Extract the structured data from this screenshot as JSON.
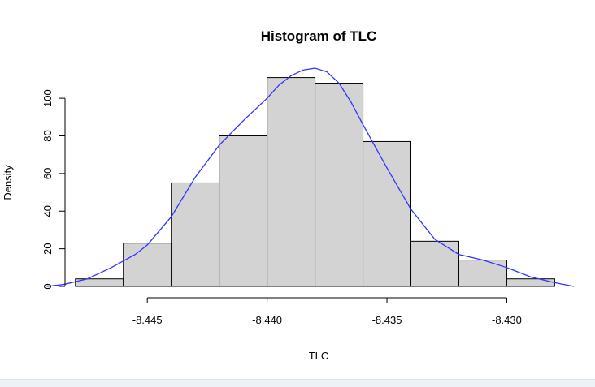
{
  "chart_data": {
    "type": "bar",
    "title": "Histogram of TLC",
    "xlabel": "TLC",
    "ylabel": "Density",
    "bin_edges": [
      -8.448,
      -8.446,
      -8.444,
      -8.442,
      -8.44,
      -8.438,
      -8.436,
      -8.434,
      -8.432,
      -8.43,
      -8.428
    ],
    "values": [
      4,
      23,
      55,
      80,
      111,
      108,
      77,
      24,
      14,
      4
    ],
    "x_ticks": [
      -8.445,
      -8.44,
      -8.435,
      -8.43
    ],
    "x_tick_labels": [
      "-8.445",
      "-8.440",
      "-8.435",
      "-8.430"
    ],
    "y_ticks": [
      0,
      20,
      40,
      60,
      80,
      100
    ],
    "y_tick_labels": [
      "0",
      "20",
      "40",
      "60",
      "80",
      "100"
    ],
    "xlim": [
      -8.4485,
      -8.4272
    ],
    "ylim": [
      0,
      116
    ],
    "grid": false,
    "density_curve": {
      "color": "#3333ff",
      "x": [
        -8.4492,
        -8.4485,
        -8.4475,
        -8.4465,
        -8.4455,
        -8.445,
        -8.444,
        -8.443,
        -8.442,
        -8.441,
        -8.44,
        -8.4395,
        -8.439,
        -8.4385,
        -8.438,
        -8.4375,
        -8.437,
        -8.4365,
        -8.436,
        -8.435,
        -8.434,
        -8.433,
        -8.432,
        -8.431,
        -8.43,
        -8.429,
        -8.428,
        -8.4272
      ],
      "y": [
        0,
        1,
        4,
        10,
        17,
        22,
        37,
        58,
        75,
        88,
        100,
        107,
        112,
        115,
        116,
        114,
        108,
        98,
        86,
        63,
        41,
        25,
        17,
        14,
        10,
        5,
        2,
        0
      ]
    }
  }
}
